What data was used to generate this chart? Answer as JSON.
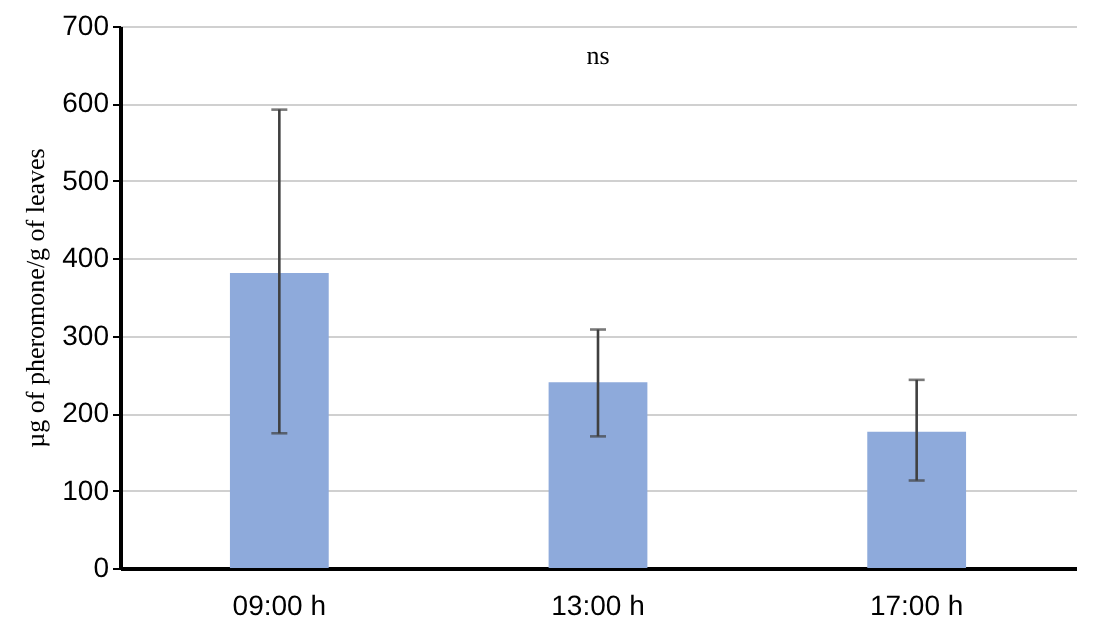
{
  "chart_data": {
    "type": "bar",
    "ylabel": "µg of pheromone/g of leaves",
    "categories": [
      "09:00 h",
      "13:00 h",
      "17:00 h"
    ],
    "values": [
      381,
      240,
      176
    ],
    "errors": [
      [
        174,
        592
      ],
      [
        170,
        308
      ],
      [
        113,
        243
      ]
    ],
    "color": "#8eaadb",
    "ylim": [
      0,
      700
    ],
    "yticks": [
      0,
      100,
      200,
      300,
      400,
      500,
      600,
      700
    ],
    "grid": "y",
    "annotations": [
      "ns"
    ]
  }
}
